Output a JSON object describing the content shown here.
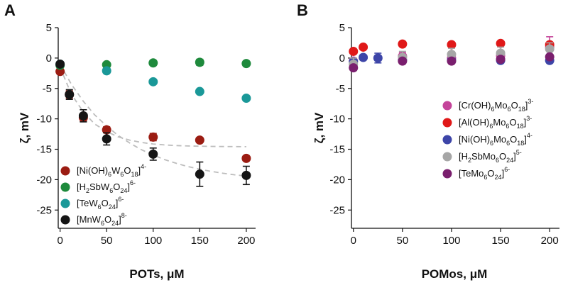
{
  "figure": {
    "background": "#ffffff"
  },
  "chart_data": [
    {
      "panel": "A",
      "type": "scatter",
      "xlabel": "POTs, μM",
      "ylabel": "ζ, mV",
      "xlim": [
        -2,
        210
      ],
      "ylim": [
        -28,
        5
      ],
      "xticks": [
        0,
        50,
        100,
        150,
        200
      ],
      "yticks": [
        5,
        0,
        -5,
        -10,
        -15,
        -20,
        -25
      ],
      "grid": false,
      "legend_position": "bottom-left",
      "series": [
        {
          "name": "[Ni(OH)6W6O18]4-",
          "base": "[Ni(OH)",
          "sub1": "6",
          "mid": "W",
          "sub2": "6",
          "mid2": "O",
          "sub3": "18",
          "end": "]",
          "sup": "4-",
          "color": "#9b1c12",
          "x": [
            0,
            10,
            25,
            50,
            100,
            150,
            200
          ],
          "y": [
            -2.2,
            -6.0,
            -9.8,
            -11.8,
            -13.0,
            -13.5,
            -16.5
          ],
          "err": [
            0.4,
            0.6,
            0.6,
            0.5,
            0.6,
            0.4,
            0.4
          ]
        },
        {
          "name": "[H2SbW6O24]6-",
          "base": "[H",
          "sub1": "2",
          "mid": "SbW",
          "sub2": "6",
          "mid2": "O",
          "sub3": "24",
          "end": "]",
          "sup": "6-",
          "color": "#1e8a3c",
          "x": [
            0,
            50,
            100,
            150,
            200
          ],
          "y": [
            -1.2,
            -1.1,
            -0.8,
            -0.7,
            -0.9
          ],
          "err": [
            0.4,
            0.3,
            0.3,
            0.5,
            0.4
          ]
        },
        {
          "name": "[TeW6O24]6-",
          "base": "[TeW",
          "sub1": "6",
          "mid": "O",
          "sub2": "24",
          "mid2": "",
          "sub3": "",
          "end": "]",
          "sup": "6-",
          "color": "#1a9898",
          "x": [
            0,
            50,
            100,
            150,
            200
          ],
          "y": [
            -1.0,
            -2.1,
            -3.9,
            -5.5,
            -6.6
          ],
          "err": [
            0.3,
            0.3,
            0.3,
            0.3,
            0.3
          ]
        },
        {
          "name": "[MnW6O24]8-",
          "base": "[MnW",
          "sub1": "6",
          "mid": "O",
          "sub2": "24",
          "mid2": "",
          "sub3": "",
          "end": "]",
          "sup": "8-",
          "color": "#151515",
          "x": [
            0,
            10,
            25,
            50,
            100,
            150,
            200
          ],
          "y": [
            -1.0,
            -6.0,
            -9.5,
            -13.3,
            -15.8,
            -19.1,
            -19.3
          ],
          "err": [
            0.4,
            0.8,
            1.0,
            1.0,
            1.0,
            2.0,
            1.5
          ]
        }
      ],
      "fits": [
        {
          "x": [
            0,
            12,
            25,
            37,
            50,
            62,
            75,
            87,
            100,
            112,
            125,
            137,
            150,
            162,
            175,
            187,
            200
          ],
          "y": [
            -1.5,
            -5.94,
            -8.87,
            -10.82,
            -12.08,
            -12.95,
            -13.51,
            -13.88,
            -14.14,
            -14.29,
            -14.39,
            -14.46,
            -14.5,
            -14.53,
            -14.55,
            -14.57,
            -14.58
          ]
        },
        {
          "x": [
            0,
            12,
            25,
            37,
            50,
            62,
            75,
            87,
            100,
            112,
            125,
            137,
            150,
            162,
            175,
            187,
            200
          ],
          "y": [
            -1.0,
            -4.29,
            -7.11,
            -9.32,
            -11.17,
            -12.69,
            -13.99,
            -15.05,
            -15.95,
            -16.69,
            -17.32,
            -17.84,
            -18.28,
            -18.64,
            -18.95,
            -19.2,
            -19.41
          ]
        }
      ]
    },
    {
      "panel": "B",
      "type": "scatter",
      "xlabel": "POMos, μM",
      "ylabel": "ζ, mV",
      "xlim": [
        -2,
        210
      ],
      "ylim": [
        -28,
        5
      ],
      "xticks": [
        0,
        50,
        100,
        150,
        200
      ],
      "yticks": [
        5,
        0,
        -5,
        -10,
        -15,
        -20,
        -25
      ],
      "grid": false,
      "legend_position": "center-right",
      "series": [
        {
          "name": "[Cr(OH)6Mo6O18]3-",
          "base": "[Cr(OH)",
          "sub1": "6",
          "mid": "Mo",
          "sub2": "6",
          "mid2": "O",
          "sub3": "18",
          "end": "]",
          "sup": "3-",
          "color": "#c4449a",
          "x": [
            0,
            50,
            100,
            150,
            200
          ],
          "y": [
            -0.5,
            0.3,
            0.0,
            0.4,
            1.8
          ],
          "err": [
            0.5,
            0.6,
            0.5,
            0.5,
            1.7
          ]
        },
        {
          "name": "[Al(OH)6Mo6O18]3-",
          "base": "[Al(OH)",
          "sub1": "6",
          "mid": "Mo",
          "sub2": "6",
          "mid2": "O",
          "sub3": "18",
          "end": "]",
          "sup": "3-",
          "color": "#e01818",
          "x": [
            0,
            10,
            50,
            100,
            150,
            200
          ],
          "y": [
            1.1,
            1.8,
            2.3,
            2.2,
            2.4,
            2.2
          ],
          "err": [
            0.3,
            0.3,
            0.3,
            0.3,
            0.3,
            0.4
          ]
        },
        {
          "name": "[Ni(OH)6Mo6O18]4-",
          "base": "[Ni(OH)",
          "sub1": "6",
          "mid": "Mo",
          "sub2": "6",
          "mid2": "O",
          "sub3": "18",
          "end": "]",
          "sup": "4-",
          "color": "#3d45a8",
          "x": [
            0,
            10,
            25,
            50,
            100,
            150,
            200
          ],
          "y": [
            -0.6,
            0.1,
            0.0,
            -0.3,
            -0.4,
            -0.4,
            -0.4
          ],
          "err": [
            0.4,
            0.4,
            0.8,
            0.4,
            0.4,
            0.4,
            0.4
          ]
        },
        {
          "name": "[H2SbMo6O24]5-",
          "base": "[H",
          "sub1": "2",
          "mid": "SbMo",
          "sub2": "6",
          "mid2": "O",
          "sub3": "24",
          "end": "]",
          "sup": "5-",
          "color": "#a6a6a6",
          "x": [
            0,
            50,
            100,
            150,
            200
          ],
          "y": [
            -1.0,
            0.1,
            0.6,
            0.8,
            1.5
          ],
          "err": [
            1.0,
            1.0,
            1.0,
            1.0,
            1.0
          ]
        },
        {
          "name": "[TeMo6O24]6-",
          "base": "[TeMo",
          "sub1": "6",
          "mid": "O",
          "sub2": "24",
          "mid2": "",
          "sub3": "",
          "end": "]",
          "sup": "6-",
          "color": "#7a1f6e",
          "x": [
            0,
            50,
            100,
            150,
            200
          ],
          "y": [
            -1.6,
            -0.5,
            -0.5,
            -0.2,
            0.2
          ],
          "err": [
            0.4,
            0.4,
            0.4,
            0.4,
            0.4
          ]
        }
      ]
    }
  ]
}
